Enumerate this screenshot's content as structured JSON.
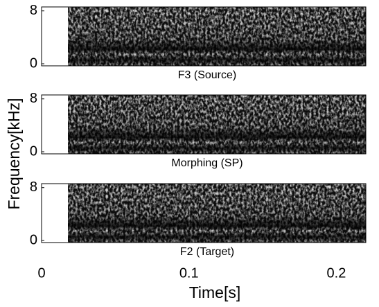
{
  "chart_data": {
    "type": "spectrogram",
    "xlabel": "Time[s]",
    "ylabel": "Frequency[kHz]",
    "xlim": [
      0,
      0.22
    ],
    "xticks": [
      0,
      0.1,
      0.2
    ],
    "panels": [
      {
        "title": "F3 (Source)",
        "ylim": [
          0,
          8.6
        ],
        "yticks": [
          0,
          8
        ]
      },
      {
        "title": "Morphing (SP)",
        "ylim": [
          0,
          8.6
        ],
        "yticks": [
          0,
          8
        ]
      },
      {
        "title": "F2 (Target)",
        "ylim": [
          0,
          8.6
        ],
        "yticks": [
          0,
          8
        ]
      }
    ]
  }
}
